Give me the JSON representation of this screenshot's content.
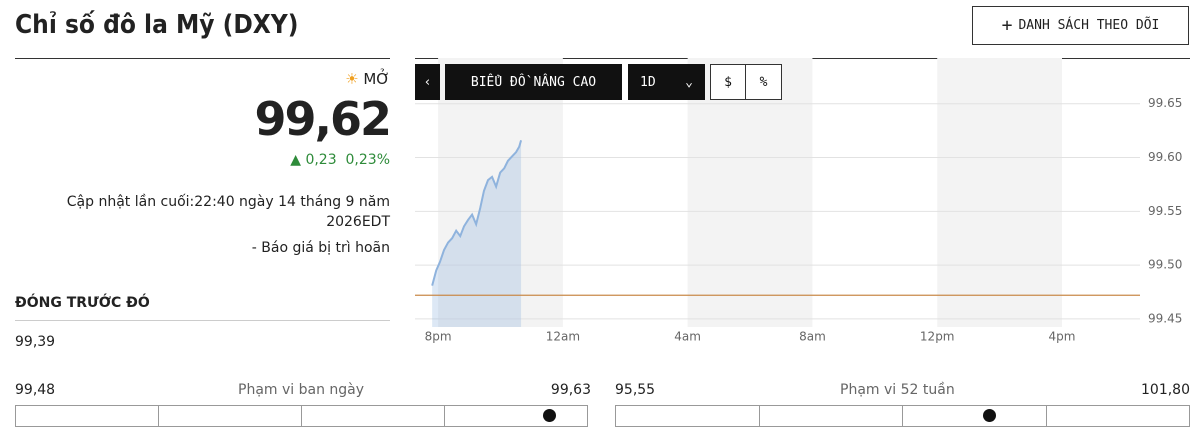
{
  "header": {
    "title": "Chỉ số đô la Mỹ (DXY)",
    "watchlist_button": "DANH SÁCH THEO DÕI"
  },
  "quote": {
    "status": "MỞ",
    "price": "99,62",
    "change": "0,23",
    "change_percent": "0,23%",
    "updated": "Cập nhật lần cuối:22:40 ngày 14 tháng 9 năm 2026EDT",
    "delay": "-  Báo giá bị trì hoãn"
  },
  "previous_close": {
    "label": "ĐÓNG TRƯỚC ĐÓ",
    "value": "99,39"
  },
  "day_range": {
    "low": "99,48",
    "label": "Phạm vi ban ngày",
    "high": "99,63"
  },
  "week52_range": {
    "low": "95,55",
    "label": "Phạm vi 52 tuần",
    "high": "101,80"
  },
  "chart_toolbar": {
    "advanced": "BIỂU ĐỒ NÂNG CAO",
    "period": "1D",
    "dollar": "$",
    "percent": "%"
  },
  "chart_data": {
    "type": "line",
    "x": [
      19.81,
      19.94,
      20.06,
      20.19,
      20.32,
      20.45,
      20.58,
      20.71,
      20.83,
      20.96,
      21.09,
      21.22,
      21.35,
      21.47,
      21.6,
      21.73,
      21.86,
      21.99,
      22.12,
      22.24,
      22.37,
      22.5,
      22.6,
      22.66
    ],
    "values": [
      99.481,
      99.495,
      99.503,
      99.514,
      99.521,
      99.525,
      99.532,
      99.527,
      99.536,
      99.542,
      99.547,
      99.538,
      99.553,
      99.569,
      99.579,
      99.582,
      99.573,
      99.586,
      99.59,
      99.597,
      99.601,
      99.605,
      99.61,
      99.616
    ],
    "color": "#8fb3dd",
    "reference_line": 99.472,
    "reference_color": "#c98a4a",
    "xlim": [
      19.26,
      42.5
    ],
    "xticks": [
      {
        "value": 20,
        "label": "8pm"
      },
      {
        "value": 24,
        "label": "12am"
      },
      {
        "value": 28,
        "label": "4am"
      },
      {
        "value": 32,
        "label": "8am"
      },
      {
        "value": 36,
        "label": "12pm"
      },
      {
        "value": 40,
        "label": "4pm"
      }
    ],
    "ylim": [
      99.4425,
      99.6925
    ],
    "yticks": [
      99.45,
      {
        "value": 99.5,
        "label": "99.50"
      },
      99.55,
      {
        "value": 99.6,
        "label": "99.60"
      },
      99.65
    ],
    "grid": true
  }
}
